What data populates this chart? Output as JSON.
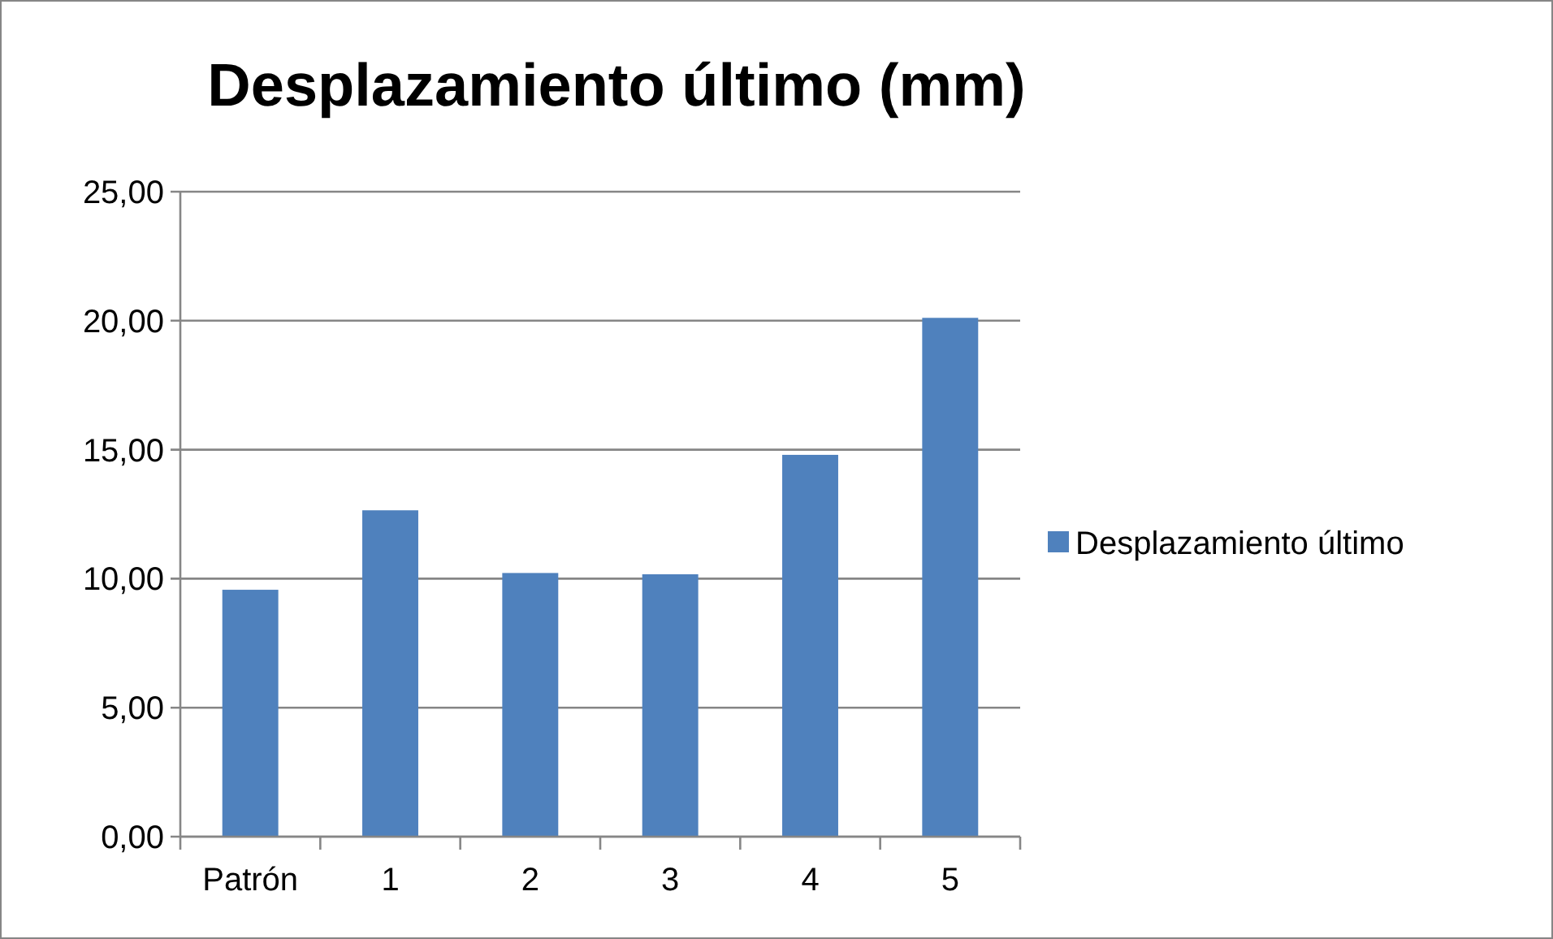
{
  "chart_data": {
    "type": "bar",
    "title": "Desplazamiento último (mm)",
    "categories": [
      "Patrón",
      "1",
      "2",
      "3",
      "4",
      "5"
    ],
    "series": [
      {
        "name": "Desplazamiento último",
        "color": "#4f81bd",
        "values": [
          9.57,
          12.65,
          10.22,
          10.17,
          14.8,
          20.11
        ]
      }
    ],
    "ylim": [
      0,
      25
    ],
    "yticks": [
      {
        "value": 0,
        "label": "0,00"
      },
      {
        "value": 5,
        "label": "5,00"
      },
      {
        "value": 10,
        "label": "10,00"
      },
      {
        "value": 15,
        "label": "15,00"
      },
      {
        "value": 20,
        "label": "20,00"
      },
      {
        "value": 25,
        "label": "25,00"
      }
    ],
    "grid": "y",
    "legend": "right"
  }
}
